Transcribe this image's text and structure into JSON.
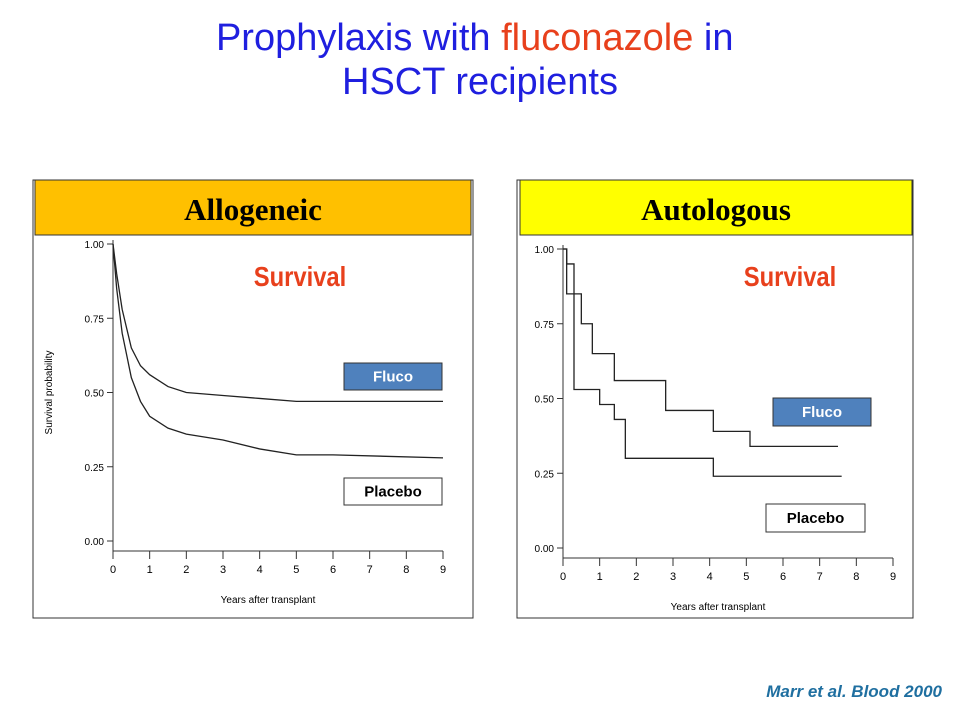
{
  "title": {
    "parts": [
      "Prophylaxis with",
      "fluconazole",
      "in",
      "HSCT recipients"
    ]
  },
  "citation": "Marr et al. Blood 2000",
  "chart_data": [
    {
      "type": "line",
      "step": false,
      "header": "Allogeneic",
      "header_color": "#ffc000",
      "annotation": "Survival",
      "xlabel": "Years after transplant",
      "ylabel": "Survival probability",
      "xlim": [
        0,
        9
      ],
      "xticks": [
        0,
        1,
        2,
        3,
        4,
        5,
        6,
        7,
        8,
        9
      ],
      "ylim": [
        0,
        1
      ],
      "yticks": [
        {
          "value": 0,
          "label": "0.00"
        },
        {
          "value": 0.25,
          "label": "0.25"
        },
        {
          "value": 0.5,
          "label": "0.50"
        },
        {
          "value": 0.75,
          "label": "0.75"
        },
        {
          "value": 1,
          "label": "1.00"
        }
      ],
      "series": [
        {
          "name": "Fluco",
          "color": "#222222",
          "label_color": "#4f81bd",
          "x": [
            0,
            0.1,
            0.25,
            0.5,
            0.75,
            1,
            1.5,
            2,
            3,
            4,
            5,
            6,
            7,
            9
          ],
          "values": [
            1,
            0.9,
            0.78,
            0.65,
            0.59,
            0.56,
            0.52,
            0.5,
            0.49,
            0.48,
            0.47,
            0.47,
            0.47,
            0.47
          ]
        },
        {
          "name": "Placebo",
          "color": "#222222",
          "label_color": "#ffffff",
          "x": [
            0,
            0.1,
            0.25,
            0.5,
            0.75,
            1,
            1.5,
            2,
            3,
            4,
            5,
            6,
            9
          ],
          "values": [
            1,
            0.85,
            0.7,
            0.55,
            0.47,
            0.42,
            0.38,
            0.36,
            0.34,
            0.31,
            0.29,
            0.29,
            0.28
          ]
        }
      ]
    },
    {
      "type": "line",
      "step": true,
      "header": "Autologous",
      "header_color": "#ffff00",
      "annotation": "Survival",
      "xlabel": "Years after transplant",
      "xlim": [
        0,
        9
      ],
      "xticks": [
        0,
        1,
        2,
        3,
        4,
        5,
        6,
        7,
        8,
        9
      ],
      "ylim": [
        0,
        1
      ],
      "yticks": [
        {
          "value": 0,
          "label": "0.00"
        },
        {
          "value": 0.25,
          "label": "0.25"
        },
        {
          "value": 0.5,
          "label": "0.50"
        },
        {
          "value": 0.75,
          "label": "0.75"
        },
        {
          "value": 1,
          "label": "1.00"
        }
      ],
      "series": [
        {
          "name": "Fluco",
          "color": "#222222",
          "label_color": "#4f81bd",
          "x": [
            0,
            0.1,
            0.3,
            0.5,
            0.8,
            1.4,
            2.8,
            4.1,
            5.1,
            7.5
          ],
          "values": [
            1,
            0.95,
            0.85,
            0.75,
            0.65,
            0.56,
            0.46,
            0.39,
            0.34,
            0.34
          ]
        },
        {
          "name": "Placebo",
          "color": "#222222",
          "label_color": "#ffffff",
          "x": [
            0,
            0.1,
            0.3,
            1,
            1.4,
            1.7,
            4.1,
            7.6
          ],
          "values": [
            1,
            0.85,
            0.53,
            0.48,
            0.43,
            0.3,
            0.24,
            0.24
          ]
        }
      ]
    }
  ]
}
